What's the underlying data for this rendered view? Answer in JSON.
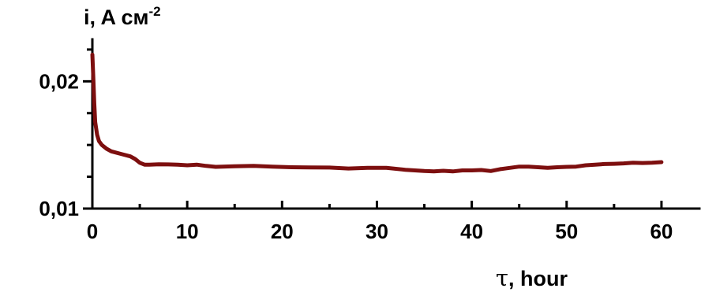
{
  "chart_data": {
    "type": "line",
    "title": "",
    "xlabel": {
      "symbol": "τ",
      "text": ", hour"
    },
    "ylabel": {
      "text": "i, A см",
      "superscript": "-2"
    },
    "xlim": [
      0,
      64
    ],
    "ylim": [
      0.01,
      0.0233
    ],
    "x_ticks": [
      {
        "value": 0,
        "label": "0"
      },
      {
        "value": 10,
        "label": "10"
      },
      {
        "value": 20,
        "label": "20"
      },
      {
        "value": 30,
        "label": "30"
      },
      {
        "value": 40,
        "label": "40"
      },
      {
        "value": 50,
        "label": "50"
      },
      {
        "value": 60,
        "label": "60"
      }
    ],
    "x_minor_ticks": [
      5,
      15,
      25,
      35,
      45,
      55
    ],
    "y_ticks": [
      {
        "value": 0.01,
        "label": "0,01"
      },
      {
        "value": 0.02,
        "label": "0,02"
      }
    ],
    "y_minor_ticks": [
      0.0125,
      0.015,
      0.0175,
      0.0225
    ],
    "grid": false,
    "series": [
      {
        "color": "#7d0f0f",
        "x": [
          0,
          0.1,
          0.2,
          0.3,
          0.5,
          0.7,
          1.0,
          1.5,
          2.0,
          3.0,
          4.0,
          4.5,
          5.0,
          5.5,
          6,
          7,
          8,
          9,
          10,
          11,
          12,
          13,
          15,
          17,
          19,
          21,
          23,
          25,
          27,
          29,
          31,
          33,
          35,
          36,
          37,
          38,
          39,
          40,
          41,
          42,
          43,
          44,
          45,
          46,
          47,
          48,
          49,
          50,
          51,
          52,
          53,
          54,
          55,
          56,
          57,
          58,
          59,
          60
        ],
        "y": [
          0.0221,
          0.0203,
          0.0183,
          0.0168,
          0.0158,
          0.0153,
          0.015,
          0.0147,
          0.0145,
          0.0143,
          0.0141,
          0.0139,
          0.0136,
          0.01345,
          0.01345,
          0.01348,
          0.01347,
          0.01345,
          0.0134,
          0.01345,
          0.01335,
          0.01328,
          0.01333,
          0.01336,
          0.0133,
          0.01325,
          0.01323,
          0.01322,
          0.01315,
          0.0132,
          0.0132,
          0.01305,
          0.01295,
          0.01292,
          0.01297,
          0.01292,
          0.013,
          0.013,
          0.01303,
          0.01295,
          0.0131,
          0.0132,
          0.0133,
          0.0133,
          0.01325,
          0.0132,
          0.01325,
          0.01328,
          0.0133,
          0.0134,
          0.01345,
          0.0135,
          0.01352,
          0.01355,
          0.0136,
          0.01358,
          0.0136,
          0.01365
        ]
      }
    ]
  }
}
